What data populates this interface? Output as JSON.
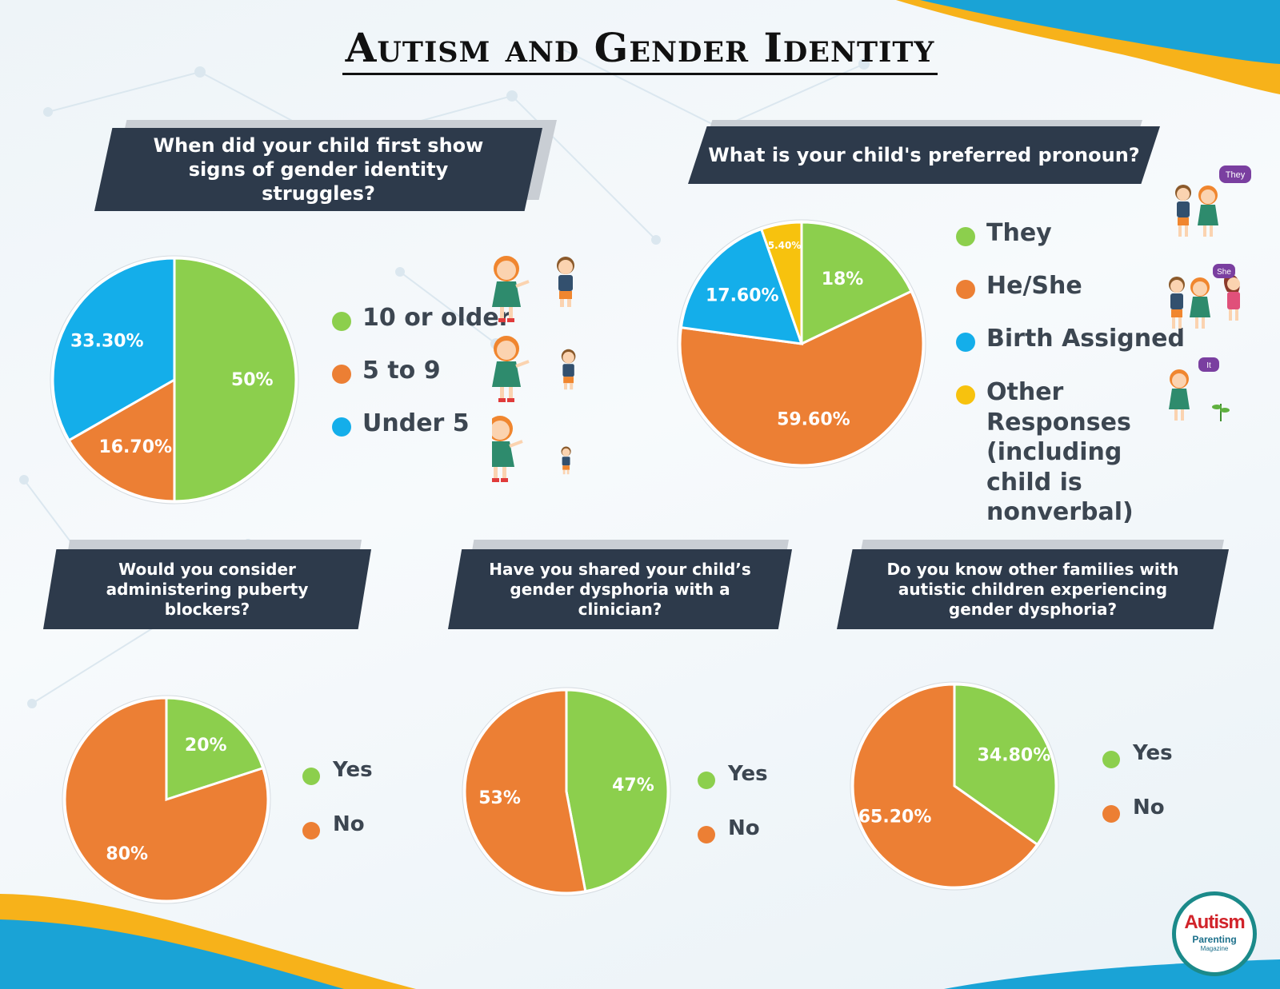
{
  "title": "Autism and Gender Identity",
  "colors": {
    "green": "#8ccf4d",
    "orange": "#ec7f34",
    "blue": "#14aeea",
    "yellow": "#f7c20e",
    "banner": "#2d3a4b",
    "teal": "#1b8a8a"
  },
  "charts": {
    "first_signs": {
      "question": "When did your child first show signs of gender identity struggles?",
      "legend": [
        "10 or older",
        "5 to 9",
        "Under 5"
      ]
    },
    "pronoun": {
      "question": "What is your child's preferred pronoun?",
      "legend": [
        "They",
        "He/She",
        "Birth Assigned",
        "Other Responses (including child is nonverbal)"
      ],
      "bubbles": [
        "They",
        "She",
        "It"
      ]
    },
    "puberty_blockers": {
      "question": "Would you consider administering puberty blockers?",
      "legend": [
        "Yes",
        "No"
      ]
    },
    "clinician": {
      "question": "Have you shared your child’s gender dysphoria with a clinician?",
      "legend": [
        "Yes",
        "No"
      ]
    },
    "other_families": {
      "question": "Do you know other families with autistic children experiencing gender dysphoria?",
      "legend": [
        "Yes",
        "No"
      ]
    }
  },
  "logo": {
    "line1": "Autism",
    "line2": "Parenting",
    "line3": "Magazine"
  },
  "chart_data": [
    {
      "type": "pie",
      "title": "When did your child first show signs of gender identity struggles?",
      "categories": [
        "10 or older",
        "5 to 9",
        "Under 5"
      ],
      "values": [
        50,
        16.7,
        33.3
      ],
      "labels": [
        "50%",
        "16.70%",
        "33.30%"
      ]
    },
    {
      "type": "pie",
      "title": "What is your child's preferred pronoun?",
      "categories": [
        "They",
        "He/She",
        "Birth Assigned",
        "Other Responses (including child is nonverbal)"
      ],
      "values": [
        18,
        59.6,
        17.6,
        5.4
      ],
      "labels": [
        "18%",
        "59.60%",
        "17.60%",
        "5.40%"
      ]
    },
    {
      "type": "pie",
      "title": "Would you consider administering puberty blockers?",
      "categories": [
        "Yes",
        "No"
      ],
      "values": [
        20,
        80
      ],
      "labels": [
        "20%",
        "80%"
      ]
    },
    {
      "type": "pie",
      "title": "Have you shared your child’s gender dysphoria with a clinician?",
      "categories": [
        "Yes",
        "No"
      ],
      "values": [
        47,
        53
      ],
      "labels": [
        "47%",
        "53%"
      ]
    },
    {
      "type": "pie",
      "title": "Do you know other families with autistic children experiencing gender dysphoria?",
      "categories": [
        "Yes",
        "No"
      ],
      "values": [
        34.8,
        65.2
      ],
      "labels": [
        "34.80%",
        "65.20%"
      ]
    }
  ]
}
